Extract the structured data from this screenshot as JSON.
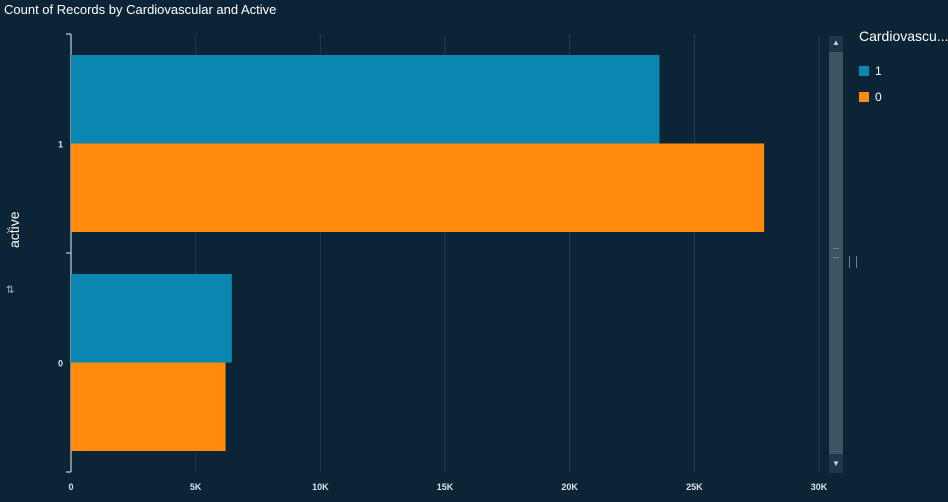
{
  "title": "Count of Records by Cardiovascular and Active",
  "y_axis_title": "active",
  "legend": {
    "title": "Cardiovascu...",
    "items": [
      {
        "label": "1",
        "color": "#0a87b1"
      },
      {
        "label": "0",
        "color": "#ff8a0c"
      }
    ]
  },
  "icons": {
    "chevron": "chevron-right-icon",
    "sort": "sort-icon",
    "scroll_up": "scroll-up-icon",
    "scroll_down": "scroll-down-icon"
  },
  "chart_data": {
    "type": "bar",
    "orientation": "horizontal",
    "title": "Count of Records by Cardiovascular and Active",
    "ylabel": "active",
    "xlabel": "",
    "categories": [
      "1",
      "0"
    ],
    "series": [
      {
        "name": "1",
        "color": "#0a87b1",
        "values": [
          23600,
          6450
        ]
      },
      {
        "name": "0",
        "color": "#ff8a0c",
        "values": [
          27800,
          6200
        ]
      }
    ],
    "xlim": [
      0,
      30000
    ],
    "x_ticks": [
      0,
      5000,
      10000,
      15000,
      20000,
      25000,
      30000
    ],
    "x_tick_labels": [
      "0",
      "5K",
      "10K",
      "15K",
      "20K",
      "25K",
      "30K"
    ],
    "grid": true,
    "legend_position": "right"
  }
}
